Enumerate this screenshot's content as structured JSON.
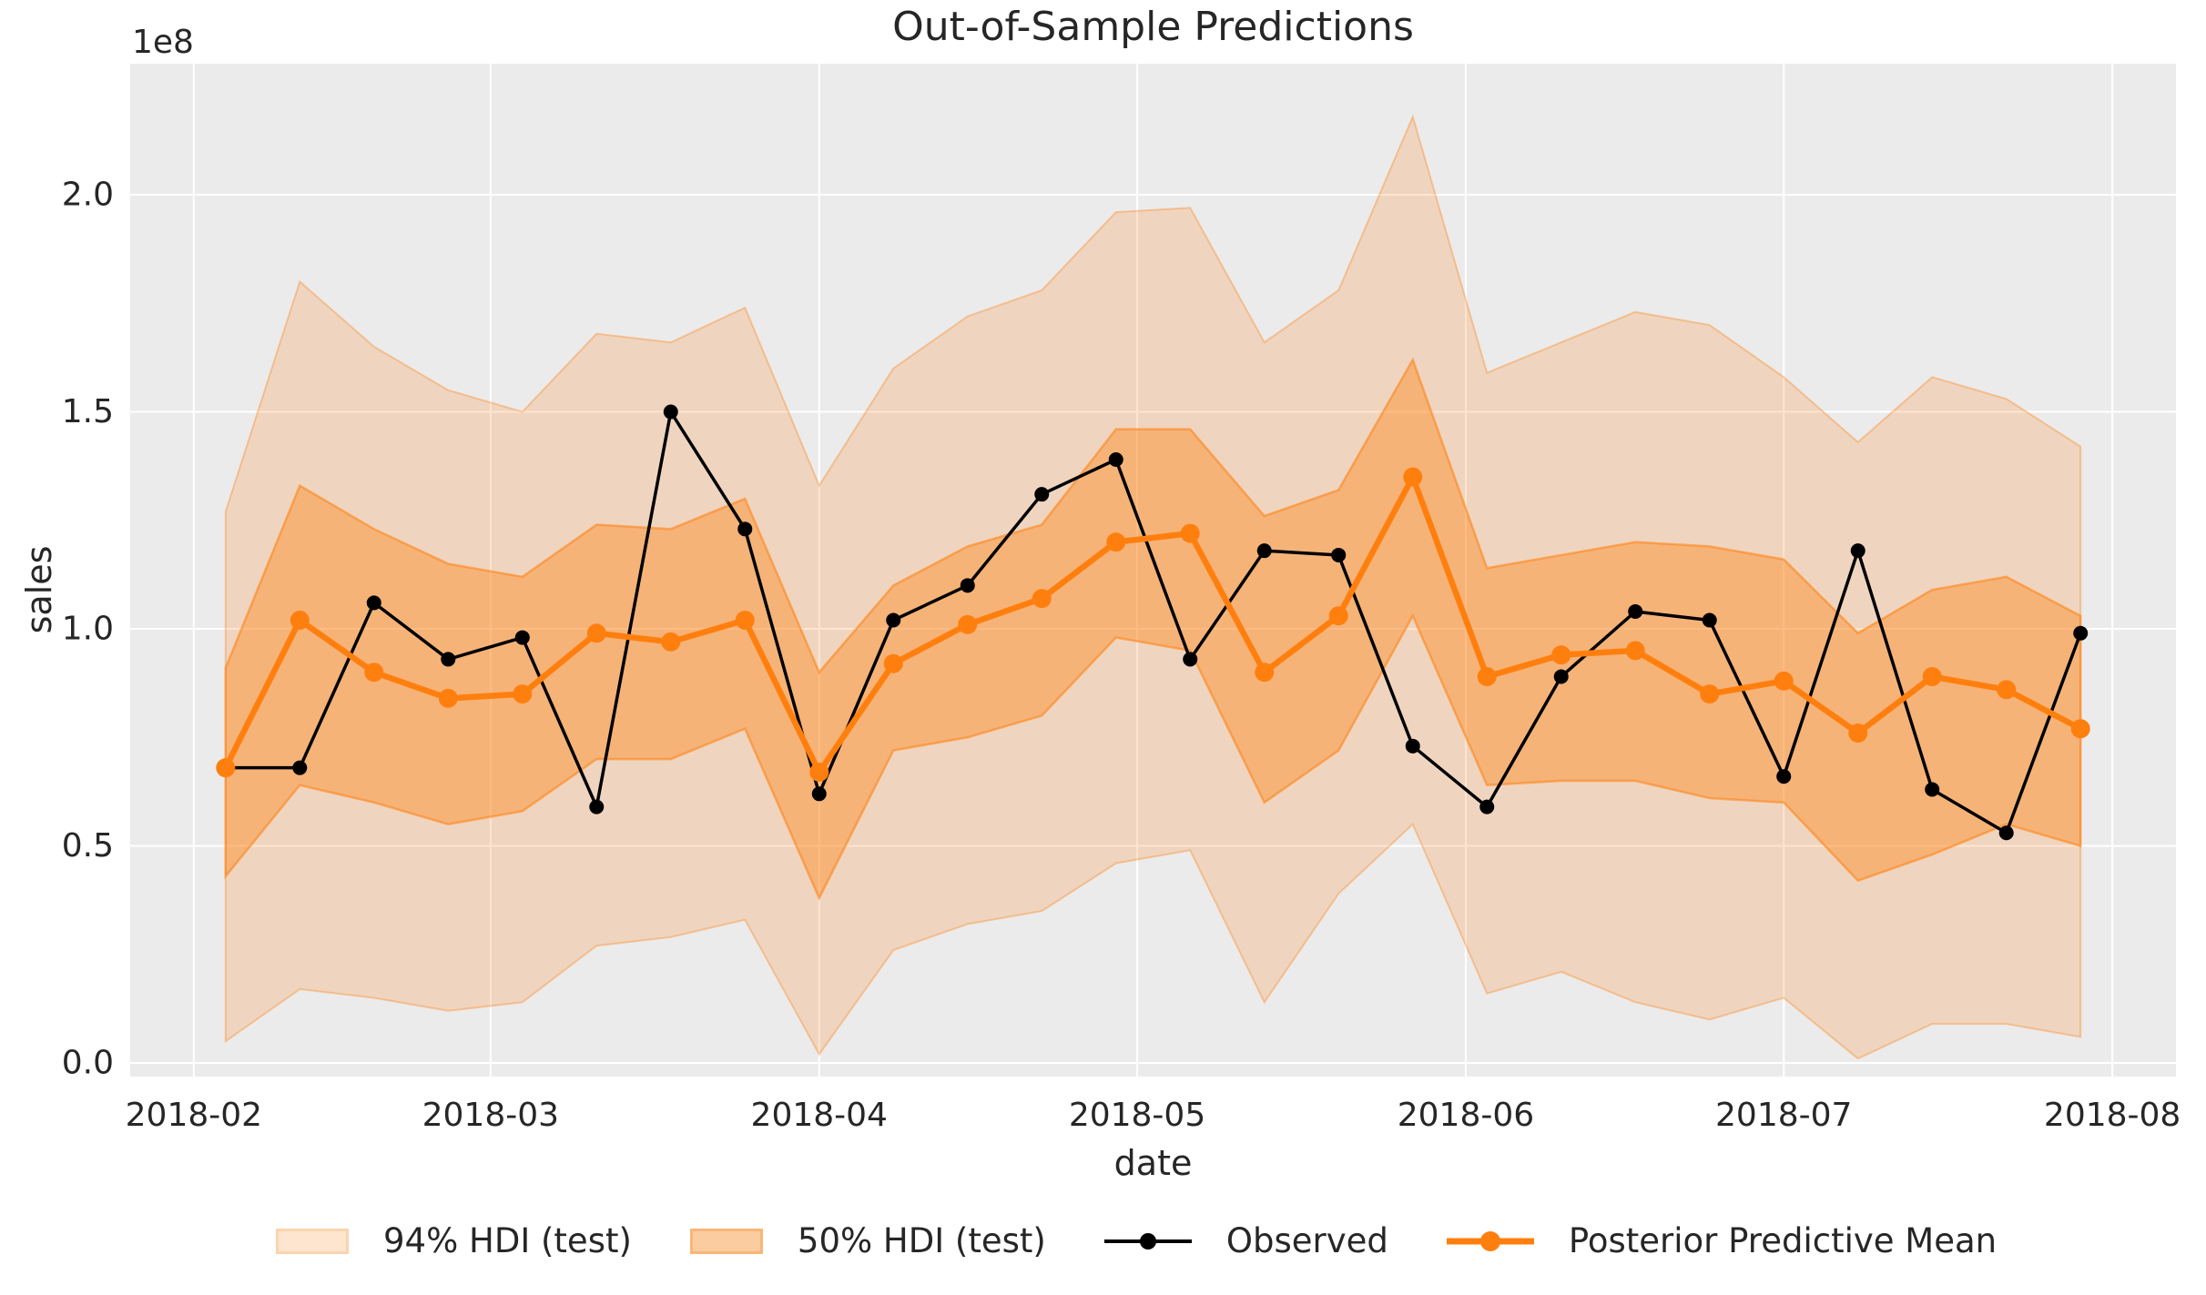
{
  "page": {
    "title": "Out-of-Sample Predictions",
    "xlabel": "date",
    "ylabel": "sales",
    "y_offset_text": "1e8"
  },
  "legend": {
    "hdi94_label": "94% HDI (test)",
    "hdi50_label": "50% HDI (test)",
    "observed_label": "Observed",
    "posterior_label": "Posterior Predictive Mean"
  },
  "colors": {
    "accent_orange": "#ff7f0e",
    "observed_black": "#000000",
    "plot_background": "#ebebeb",
    "grid": "#ffffff",
    "text": "#262626",
    "hdi94_fill": "rgba(255,127,14,0.2)",
    "hdi50_fill": "rgba(255,127,14,0.4)",
    "hdi94_edge": "rgba(255,127,14,0.35)",
    "hdi50_edge": "rgba(255,127,14,0.55)"
  },
  "chart_data": {
    "type": "line",
    "title": "Out-of-Sample Predictions",
    "xlabel": "date",
    "ylabel": "sales",
    "y_offset_text": "1e8",
    "unit_multiplier": 100000000.0,
    "grid": true,
    "legend_position": "bottom",
    "xlim": [
      "2018-01-26",
      "2018-08-07"
    ],
    "ylim": [
      -0.0314,
      2.302
    ],
    "xticks": [
      {
        "label": "2018-02",
        "date": "2018-02-01"
      },
      {
        "label": "2018-03",
        "date": "2018-03-01"
      },
      {
        "label": "2018-04",
        "date": "2018-04-01"
      },
      {
        "label": "2018-05",
        "date": "2018-05-01"
      },
      {
        "label": "2018-06",
        "date": "2018-06-01"
      },
      {
        "label": "2018-07",
        "date": "2018-07-01"
      },
      {
        "label": "2018-08",
        "date": "2018-08-01"
      }
    ],
    "yticks": [
      {
        "label": "0.0",
        "value": 0.0
      },
      {
        "label": "0.5",
        "value": 0.5
      },
      {
        "label": "1.0",
        "value": 1.0
      },
      {
        "label": "1.5",
        "value": 1.5
      },
      {
        "label": "2.0",
        "value": 2.0
      }
    ],
    "x": [
      "2018-02-04",
      "2018-02-11",
      "2018-02-18",
      "2018-02-25",
      "2018-03-04",
      "2018-03-11",
      "2018-03-18",
      "2018-03-25",
      "2018-04-01",
      "2018-04-08",
      "2018-04-15",
      "2018-04-22",
      "2018-04-29",
      "2018-05-06",
      "2018-05-13",
      "2018-05-20",
      "2018-05-27",
      "2018-06-03",
      "2018-06-10",
      "2018-06-17",
      "2018-06-24",
      "2018-07-01",
      "2018-07-08",
      "2018-07-15",
      "2018-07-22",
      "2018-07-29"
    ],
    "series": [
      {
        "name": "Observed",
        "color": "#000000",
        "values": [
          0.68,
          0.68,
          1.06,
          0.93,
          0.98,
          0.59,
          1.5,
          1.23,
          0.62,
          1.02,
          1.1,
          1.31,
          1.39,
          0.93,
          1.18,
          1.17,
          0.73,
          0.59,
          0.89,
          1.04,
          1.02,
          0.66,
          1.18,
          0.63,
          0.53,
          0.99
        ]
      },
      {
        "name": "Posterior Predictive Mean",
        "color": "#ff7f0e",
        "values": [
          0.68,
          1.02,
          0.9,
          0.84,
          0.85,
          0.99,
          0.97,
          1.02,
          0.67,
          0.92,
          1.01,
          1.07,
          1.2,
          1.22,
          0.9,
          1.03,
          1.35,
          0.89,
          0.94,
          0.95,
          0.85,
          0.88,
          0.76,
          0.89,
          0.86,
          0.77
        ]
      }
    ],
    "bands": [
      {
        "name": "94% HDI (test)",
        "alpha": 0.2,
        "upper": [
          1.27,
          1.8,
          1.65,
          1.55,
          1.5,
          1.68,
          1.66,
          1.74,
          1.33,
          1.6,
          1.72,
          1.78,
          1.96,
          1.97,
          1.66,
          1.78,
          2.18,
          1.59,
          1.66,
          1.73,
          1.7,
          1.58,
          1.43,
          1.58,
          1.53,
          1.42
        ],
        "lower": [
          0.05,
          0.17,
          0.15,
          0.12,
          0.14,
          0.27,
          0.29,
          0.33,
          0.02,
          0.26,
          0.32,
          0.35,
          0.46,
          0.49,
          0.14,
          0.39,
          0.55,
          0.16,
          0.21,
          0.14,
          0.1,
          0.15,
          0.01,
          0.09,
          0.09,
          0.06
        ]
      },
      {
        "name": "50% HDI (test)",
        "alpha": 0.4,
        "upper": [
          0.91,
          1.33,
          1.23,
          1.15,
          1.12,
          1.24,
          1.23,
          1.3,
          0.9,
          1.1,
          1.19,
          1.24,
          1.46,
          1.46,
          1.26,
          1.32,
          1.62,
          1.14,
          1.17,
          1.2,
          1.19,
          1.16,
          0.99,
          1.09,
          1.12,
          1.03
        ],
        "lower": [
          0.43,
          0.64,
          0.6,
          0.55,
          0.58,
          0.7,
          0.7,
          0.77,
          0.38,
          0.72,
          0.75,
          0.8,
          0.98,
          0.95,
          0.6,
          0.72,
          1.03,
          0.64,
          0.65,
          0.65,
          0.61,
          0.6,
          0.42,
          0.48,
          0.55,
          0.5
        ]
      }
    ]
  }
}
